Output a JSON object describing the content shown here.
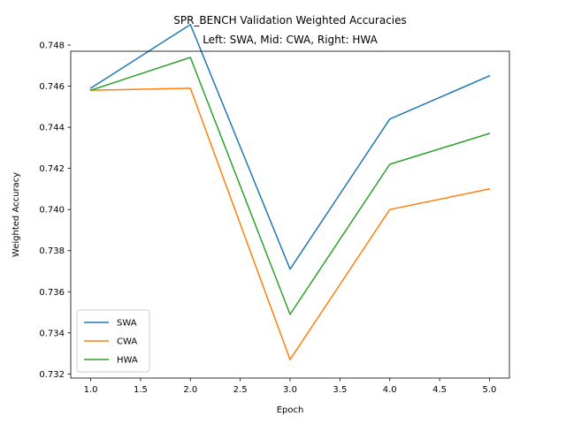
{
  "chart_data": {
    "type": "line",
    "title_line1": "SPR_BENCH Validation Weighted Accuracies",
    "title_line2": "Left: SWA, Mid: CWA, Right: HWA",
    "xlabel": "Epoch",
    "ylabel": "Weighted Accuracy",
    "x": [
      1,
      2,
      3,
      4,
      5
    ],
    "xlim": [
      0.8,
      5.2
    ],
    "ylim": [
      0.7318,
      0.7477
    ],
    "xticks": [
      "1.0",
      "1.5",
      "2.0",
      "2.5",
      "3.0",
      "3.5",
      "4.0",
      "4.5",
      "5.0"
    ],
    "yticks": [
      "0.732",
      "0.734",
      "0.736",
      "0.738",
      "0.740",
      "0.742",
      "0.744",
      "0.746",
      "0.748"
    ],
    "legend_position": "lower-left",
    "grid": false,
    "series": [
      {
        "name": "SWA",
        "color": "#1f77b4",
        "values": [
          0.7459,
          0.749,
          0.7371,
          0.7444,
          0.7465
        ]
      },
      {
        "name": "CWA",
        "color": "#ff7f0e",
        "values": [
          0.7458,
          0.7459,
          0.7327,
          0.74,
          0.741
        ]
      },
      {
        "name": "HWA",
        "color": "#2ca02c",
        "values": [
          0.7458,
          0.7474,
          0.7349,
          0.7422,
          0.7437
        ]
      }
    ]
  }
}
